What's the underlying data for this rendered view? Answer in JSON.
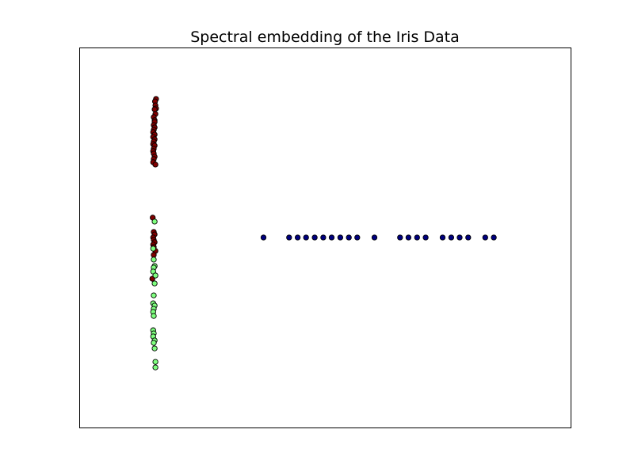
{
  "chart_data": {
    "type": "scatter",
    "title": "Spectral embedding of the Iris Data",
    "xlabel": "",
    "ylabel": "",
    "xlim": [
      -0.06,
      0.18
    ],
    "ylim": [
      -0.11,
      0.11
    ],
    "x_ticks_visible": false,
    "y_ticks_visible": false,
    "grid": false,
    "marker": "circle",
    "edge_color": "#000000",
    "series": [
      {
        "color": "#00007f",
        "points": [
          [
            0.03,
            0.0
          ],
          [
            0.0425,
            0.0
          ],
          [
            0.0467,
            0.0
          ],
          [
            0.0508,
            0.0
          ],
          [
            0.055,
            0.0
          ],
          [
            0.0592,
            0.0
          ],
          [
            0.0633,
            0.0
          ],
          [
            0.0675,
            0.0
          ],
          [
            0.0717,
            0.0
          ],
          [
            0.0758,
            0.0
          ],
          [
            0.0842,
            0.0
          ],
          [
            0.0967,
            0.0
          ],
          [
            0.1008,
            0.0
          ],
          [
            0.105,
            0.0
          ],
          [
            0.1092,
            0.0
          ],
          [
            0.1175,
            0.0
          ],
          [
            0.1217,
            0.0
          ],
          [
            0.1258,
            0.0
          ],
          [
            0.13,
            0.0
          ],
          [
            0.1383,
            0.0
          ],
          [
            0.1425,
            0.0
          ]
        ]
      },
      {
        "color": "#7f0000",
        "points": [
          [
            -0.0225,
            0.0802
          ],
          [
            -0.023,
            0.0788
          ],
          [
            -0.0228,
            0.0765
          ],
          [
            -0.0225,
            0.0747
          ],
          [
            -0.0232,
            0.0742
          ],
          [
            -0.0228,
            0.0715
          ],
          [
            -0.0236,
            0.0697
          ],
          [
            -0.0232,
            0.0679
          ],
          [
            -0.0232,
            0.0669
          ],
          [
            -0.0236,
            0.0651
          ],
          [
            -0.0232,
            0.0637
          ],
          [
            -0.0236,
            0.0623
          ],
          [
            -0.0239,
            0.061
          ],
          [
            -0.0232,
            0.0596
          ],
          [
            -0.0239,
            0.0582
          ],
          [
            -0.0232,
            0.0569
          ],
          [
            -0.0236,
            0.0555
          ],
          [
            -0.0239,
            0.0541
          ],
          [
            -0.0232,
            0.0532
          ],
          [
            -0.0236,
            0.0514
          ],
          [
            -0.0239,
            0.05
          ],
          [
            -0.0236,
            0.0486
          ],
          [
            -0.0232,
            0.0468
          ],
          [
            -0.0236,
            0.0454
          ],
          [
            -0.0239,
            0.0436
          ],
          [
            -0.0228,
            0.0422
          ],
          [
            -0.0241,
            0.0115
          ],
          [
            -0.0236,
            0.0032
          ],
          [
            -0.0232,
            0.0018
          ],
          [
            -0.0239,
            0.0
          ],
          [
            -0.0236,
            -0.0014
          ],
          [
            -0.0232,
            -0.0027
          ],
          [
            -0.0239,
            -0.0041
          ],
          [
            -0.0236,
            -0.0055
          ],
          [
            -0.0228,
            -0.0078
          ],
          [
            -0.0236,
            -0.0101
          ],
          [
            -0.0243,
            -0.0239
          ]
        ]
      },
      {
        "color": "#7fff7f",
        "points": [
          [
            -0.0232,
            0.0092
          ],
          [
            -0.0239,
            -0.0064
          ],
          [
            -0.0236,
            -0.0128
          ],
          [
            -0.0232,
            -0.0165
          ],
          [
            -0.0236,
            -0.0174
          ],
          [
            -0.0239,
            -0.0197
          ],
          [
            -0.0228,
            -0.022
          ],
          [
            -0.0232,
            -0.0266
          ],
          [
            -0.0236,
            -0.0335
          ],
          [
            -0.0239,
            -0.0381
          ],
          [
            -0.0232,
            -0.0394
          ],
          [
            -0.0236,
            -0.0413
          ],
          [
            -0.0239,
            -0.0431
          ],
          [
            -0.0236,
            -0.0454
          ],
          [
            -0.0239,
            -0.0537
          ],
          [
            -0.0236,
            -0.0555
          ],
          [
            -0.0239,
            -0.0573
          ],
          [
            -0.0232,
            -0.0596
          ],
          [
            -0.0236,
            -0.061
          ],
          [
            -0.0232,
            -0.0642
          ],
          [
            -0.0228,
            -0.072
          ],
          [
            -0.0228,
            -0.0752
          ]
        ]
      }
    ]
  }
}
